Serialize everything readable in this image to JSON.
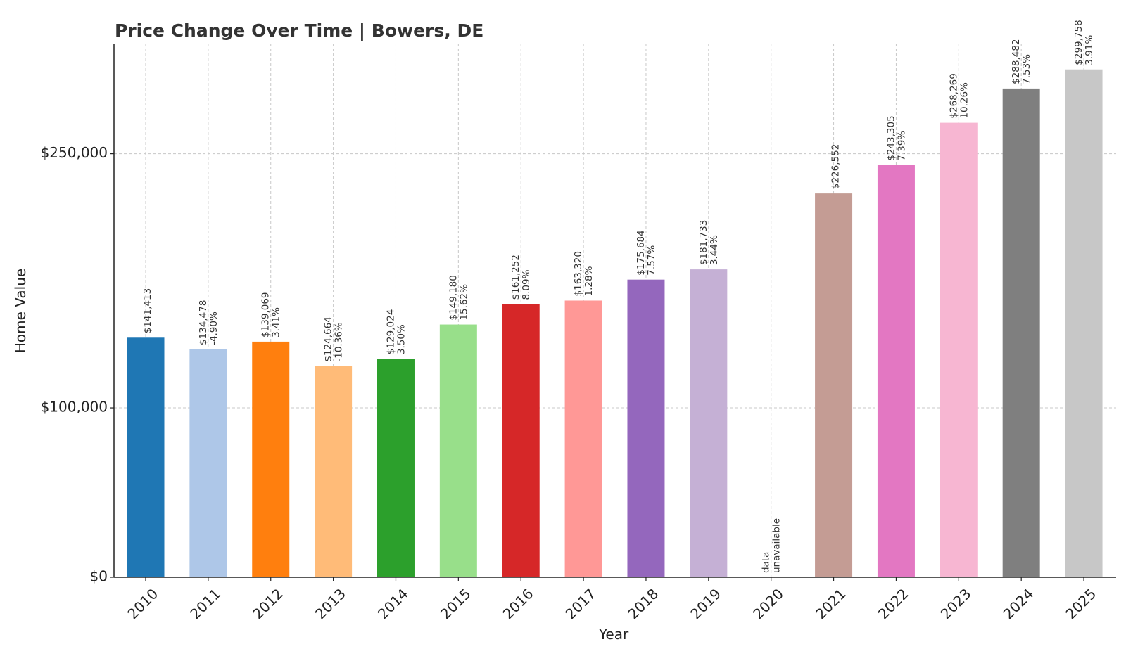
{
  "chart_data": {
    "type": "bar",
    "title": "Price Change Over Time | Bowers, DE",
    "xlabel": "Year",
    "ylabel": "Home Value",
    "ylim": [
      0,
      315000
    ],
    "yticks": [
      0,
      100000,
      250000
    ],
    "ytick_labels": [
      "$0",
      "$100,000",
      "$250,000"
    ],
    "grid": true,
    "categories": [
      "2010",
      "2011",
      "2012",
      "2013",
      "2014",
      "2015",
      "2016",
      "2017",
      "2018",
      "2019",
      "2020",
      "2021",
      "2022",
      "2023",
      "2024",
      "2025"
    ],
    "values": [
      141413,
      134478,
      139069,
      124664,
      129024,
      149180,
      161252,
      163320,
      175684,
      181733,
      null,
      226552,
      243305,
      268269,
      288482,
      299758
    ],
    "value_labels": [
      "$141,413",
      "$134,478",
      "$139,069",
      "$124,664",
      "$129,024",
      "$149,180",
      "$161,252",
      "$163,320",
      "$175,684",
      "$181,733",
      "data",
      "$226,552",
      "$243,305",
      "$268,269",
      "$288,482",
      "$299,758"
    ],
    "change_labels": [
      "",
      "-4.90%",
      "3.41%",
      "-10.36%",
      "3.50%",
      "15.62%",
      "8.09%",
      "1.28%",
      "7.57%",
      "3.44%",
      "unavailable",
      "",
      "7.39%",
      "10.26%",
      "7.53%",
      "3.91%"
    ],
    "colors": [
      "#1f77b4",
      "#aec7e8",
      "#ff7f0e",
      "#ffbb78",
      "#2ca02c",
      "#98df8a",
      "#d62728",
      "#ff9896",
      "#9467bd",
      "#c5b0d5",
      "#8c564b",
      "#c49c94",
      "#e377c2",
      "#f7b6d2",
      "#7f7f7f",
      "#c7c7c7"
    ]
  }
}
